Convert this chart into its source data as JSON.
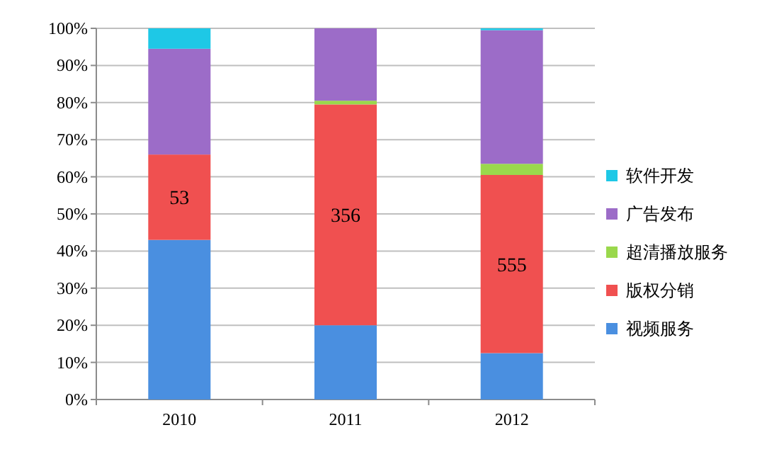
{
  "chart_data": {
    "type": "bar",
    "stacked": true,
    "categories": [
      "2010",
      "2011",
      "2012"
    ],
    "series": [
      {
        "name": "视频服务",
        "color": "#4a8fe0",
        "values": [
          43,
          20,
          12.5
        ]
      },
      {
        "name": "版权分销",
        "color": "#f05050",
        "values": [
          23,
          59.5,
          48
        ]
      },
      {
        "name": "超清播放服务",
        "color": "#9ad84c",
        "values": [
          0,
          1,
          3
        ]
      },
      {
        "name": "广告发布",
        "color": "#9c6cc8",
        "values": [
          28.5,
          19.5,
          36
        ]
      },
      {
        "name": "软件开发",
        "color": "#1ec8e6",
        "values": [
          5.5,
          0,
          0.5
        ]
      }
    ],
    "ylim": [
      0,
      100
    ],
    "yticks": [
      {
        "value": 0,
        "label": "0%"
      },
      {
        "value": 10,
        "label": "10%"
      },
      {
        "value": 20,
        "label": "20%"
      },
      {
        "value": 30,
        "label": "30%"
      },
      {
        "value": 40,
        "label": "40%"
      },
      {
        "value": 50,
        "label": "50%"
      },
      {
        "value": 60,
        "label": "60%"
      },
      {
        "value": 70,
        "label": "70%"
      },
      {
        "value": 80,
        "label": "80%"
      },
      {
        "value": 90,
        "label": "90%"
      },
      {
        "value": 100,
        "label": "100%"
      }
    ],
    "annotations": [
      "53",
      "356",
      "555"
    ],
    "grid": "y",
    "legend": "right"
  }
}
